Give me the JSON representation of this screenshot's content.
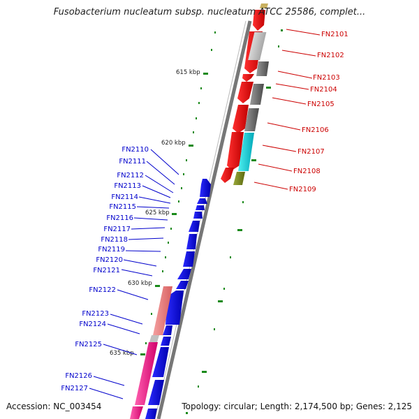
{
  "title": "Fusobacterium nucleatum subsp. nucleatum ATCC 25586, complet...",
  "footer": {
    "accession": "Accession: NC_003454",
    "summary": "Topology: circular; Length: 2,174,500 bp; Genes: 2,125"
  },
  "colors": {
    "reverse_label": "#cc0000",
    "forward_label": "#0000cc",
    "backbone": "#777777",
    "tick": "#1a8a1a"
  },
  "ticks": [
    "615 kbp",
    "620 kbp",
    "625 kbp",
    "630 kbp",
    "635 kbp"
  ],
  "reverse_genes": [
    "FN2101",
    "FN2102",
    "FN2103",
    "FN2104",
    "FN2105",
    "FN2106",
    "FN2107",
    "FN2108",
    "FN2109"
  ],
  "forward_genes": [
    "FN2110",
    "FN2111",
    "FN2112",
    "FN2113",
    "FN2114",
    "FN2115",
    "FN2116",
    "FN2117",
    "FN2118",
    "FN2119",
    "FN2120",
    "FN2121",
    "FN2122",
    "FN2123",
    "FN2124",
    "FN2125",
    "FN2126",
    "FN2127"
  ]
}
